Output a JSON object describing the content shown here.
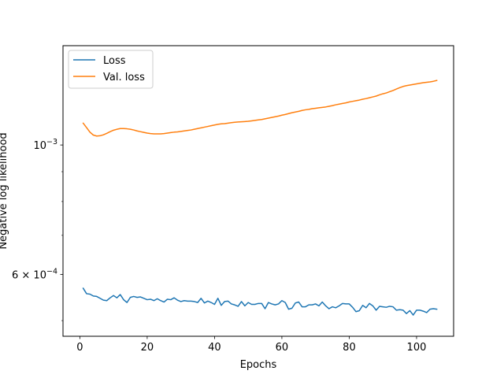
{
  "chart_data": {
    "type": "line",
    "title": "",
    "xlabel": "Epochs",
    "ylabel": "Negative log likelihood",
    "yscale": "log",
    "xlim": [
      -5,
      111
    ],
    "ylim": [
      0.00047,
      0.00148
    ],
    "grid": false,
    "legend_position": "top-left",
    "x_ticks": [
      0,
      20,
      40,
      60,
      80,
      100
    ],
    "x_tick_labels": [
      "0",
      "20",
      "40",
      "60",
      "80",
      "100"
    ],
    "y_ticks": [
      0.001,
      0.0006
    ],
    "y_tick_labels": [
      {
        "base": "10",
        "exp": "−3"
      },
      {
        "base": "6 × 10",
        "exp": "−4"
      }
    ],
    "y_minor_ticks": [
      0.0005,
      0.0007,
      0.0008,
      0.0009
    ],
    "series": [
      {
        "name": "Loss",
        "color": "#1f77b4",
        "x": [
          1,
          2,
          3,
          4,
          5,
          6,
          7,
          8,
          9,
          10,
          11,
          12,
          13,
          14,
          15,
          16,
          17,
          18,
          19,
          20,
          21,
          22,
          23,
          24,
          25,
          26,
          27,
          28,
          29,
          30,
          31,
          32,
          33,
          34,
          35,
          36,
          37,
          38,
          39,
          40,
          41,
          42,
          43,
          44,
          45,
          46,
          47,
          48,
          49,
          50,
          51,
          52,
          53,
          54,
          55,
          56,
          57,
          58,
          59,
          60,
          61,
          62,
          63,
          64,
          65,
          66,
          67,
          68,
          69,
          70,
          71,
          72,
          73,
          74,
          75,
          76,
          77,
          78,
          79,
          80,
          81,
          82,
          83,
          84,
          85,
          86,
          87,
          88,
          89,
          90,
          91,
          92,
          93,
          94,
          95,
          96,
          97,
          98,
          99,
          100,
          101,
          102,
          103,
          104,
          105,
          106
        ],
        "y": [
          0.000568,
          0.000556,
          0.000555,
          0.000551,
          0.00055,
          0.000546,
          0.000542,
          0.000541,
          0.000547,
          0.000552,
          0.000547,
          0.000554,
          0.000543,
          0.000537,
          0.000548,
          0.00055,
          0.000548,
          0.000549,
          0.000546,
          0.000543,
          0.000544,
          0.000541,
          0.000545,
          0.000541,
          0.000538,
          0.000544,
          0.000543,
          0.000547,
          0.000542,
          0.000539,
          0.000541,
          0.00054,
          0.00054,
          0.000539,
          0.000537,
          0.000546,
          0.000536,
          0.00054,
          0.000537,
          0.000533,
          0.000546,
          0.000531,
          0.000539,
          0.00054,
          0.000534,
          0.000532,
          0.000529,
          0.000539,
          0.00053,
          0.000537,
          0.000533,
          0.000533,
          0.000535,
          0.000535,
          0.000524,
          0.000537,
          0.000534,
          0.000532,
          0.000534,
          0.000541,
          0.000537,
          0.000523,
          0.000525,
          0.000536,
          0.000538,
          0.000528,
          0.000528,
          0.000532,
          0.000532,
          0.000534,
          0.00053,
          0.000538,
          0.00053,
          0.000524,
          0.000528,
          0.000526,
          0.00053,
          0.000535,
          0.000534,
          0.000534,
          0.000527,
          0.000518,
          0.00052,
          0.000531,
          0.000526,
          0.000535,
          0.00053,
          0.000521,
          0.000529,
          0.000528,
          0.000527,
          0.000529,
          0.000528,
          0.000521,
          0.000522,
          0.000521,
          0.000514,
          0.00052,
          0.000511,
          0.000521,
          0.000521,
          0.000519,
          0.000516,
          0.000523,
          0.000524,
          0.000523
        ]
      },
      {
        "name": "Val. loss",
        "color": "#ff7f0e",
        "x": [
          1,
          2,
          3,
          4,
          5,
          6,
          7,
          8,
          9,
          10,
          11,
          12,
          13,
          14,
          15,
          16,
          17,
          18,
          19,
          20,
          21,
          22,
          23,
          24,
          25,
          26,
          27,
          28,
          29,
          30,
          31,
          32,
          33,
          34,
          35,
          36,
          37,
          38,
          39,
          40,
          41,
          42,
          43,
          44,
          45,
          46,
          47,
          48,
          49,
          50,
          51,
          52,
          53,
          54,
          55,
          56,
          57,
          58,
          59,
          60,
          61,
          62,
          63,
          64,
          65,
          66,
          67,
          68,
          69,
          70,
          71,
          72,
          73,
          74,
          75,
          76,
          77,
          78,
          79,
          80,
          81,
          82,
          83,
          84,
          85,
          86,
          87,
          88,
          89,
          90,
          91,
          92,
          93,
          94,
          95,
          96,
          97,
          98,
          99,
          100,
          101,
          102,
          103,
          104,
          105,
          106
        ],
        "y": [
          0.00109,
          0.001071,
          0.001052,
          0.00104,
          0.001036,
          0.001037,
          0.001041,
          0.001047,
          0.001054,
          0.00106,
          0.001064,
          0.001067,
          0.001067,
          0.001066,
          0.001064,
          0.001061,
          0.001057,
          0.001054,
          0.001051,
          0.001048,
          0.001046,
          0.001045,
          0.001045,
          0.001045,
          0.001046,
          0.001048,
          0.00105,
          0.001052,
          0.001053,
          0.001055,
          0.001057,
          0.001059,
          0.001061,
          0.001064,
          0.001067,
          0.00107,
          0.001073,
          0.001076,
          0.001079,
          0.001082,
          0.001085,
          0.001087,
          0.001088,
          0.00109,
          0.001092,
          0.001094,
          0.001095,
          0.001096,
          0.001097,
          0.001098,
          0.0011,
          0.001102,
          0.001104,
          0.001106,
          0.001109,
          0.001112,
          0.001115,
          0.001118,
          0.001121,
          0.001125,
          0.001128,
          0.001132,
          0.001136,
          0.001139,
          0.001142,
          0.001146,
          0.001149,
          0.001151,
          0.001154,
          0.001156,
          0.001158,
          0.00116,
          0.001162,
          0.001165,
          0.001168,
          0.001172,
          0.001175,
          0.001178,
          0.001181,
          0.001185,
          0.001188,
          0.001191,
          0.001194,
          0.001198,
          0.001201,
          0.001205,
          0.001209,
          0.001213,
          0.001219,
          0.001224,
          0.001228,
          0.001234,
          0.00124,
          0.001247,
          0.001254,
          0.00126,
          0.001264,
          0.001267,
          0.00127,
          0.001273,
          0.001276,
          0.001279,
          0.001281,
          0.001283,
          0.001286,
          0.00129
        ]
      }
    ]
  }
}
